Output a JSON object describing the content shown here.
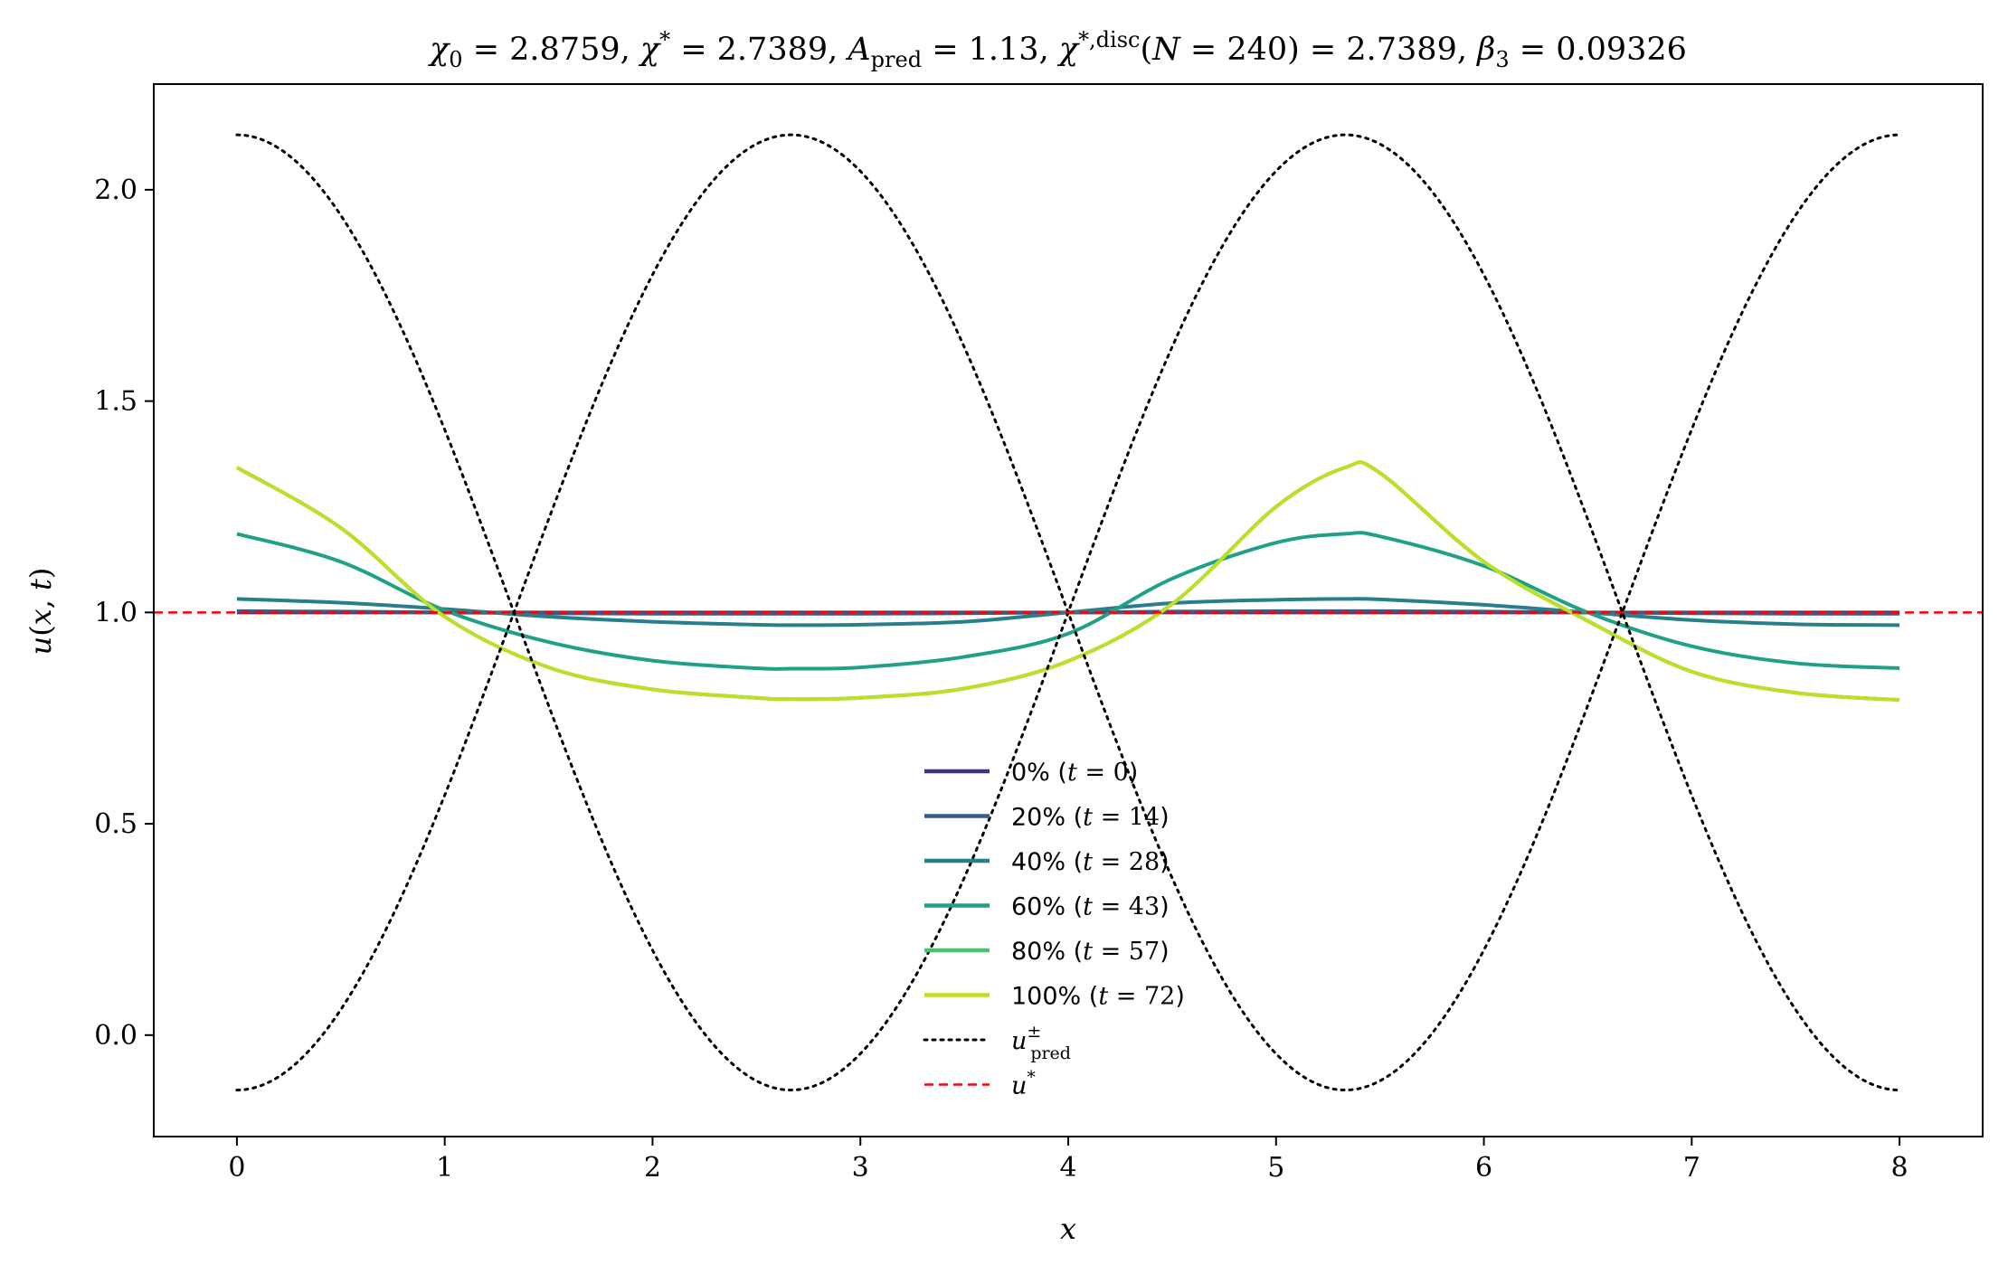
{
  "chart_data": {
    "type": "line",
    "title": "χ₀ = 2.8759,  χ* = 2.7389,  A_pred = 1.13,  χ*,disc(N = 240) = 2.7389,  β₃ = 0.09326",
    "xlabel": "x",
    "ylabel": "u(x, t)",
    "xlim": [
      -0.4,
      8.4
    ],
    "ylim": [
      -0.24,
      2.25
    ],
    "x_ticks": [
      "0",
      "1",
      "2",
      "3",
      "4",
      "5",
      "6",
      "7",
      "8"
    ],
    "y_ticks": [
      "0.0",
      "0.5",
      "1.0",
      "1.5",
      "2.0"
    ],
    "grid": false,
    "legend_position": "bottom-center",
    "x": [
      0,
      0.5,
      1.0,
      1.5,
      2.0,
      2.5,
      2.667,
      3.0,
      3.5,
      4.0,
      4.5,
      5.0,
      5.333,
      5.5,
      6.0,
      6.5,
      7.0,
      7.5,
      8.0
    ],
    "series": [
      {
        "name": "0% (t = 0)",
        "color": "#46327e",
        "style": "solid",
        "values": [
          1.0,
          1.0,
          1.0,
          1.0,
          1.0,
          1.0,
          1.0,
          1.0,
          1.0,
          1.0,
          1.0,
          1.0,
          1.0,
          1.0,
          1.0,
          1.0,
          1.0,
          1.0,
          1.0
        ]
      },
      {
        "name": "20% (t = 14)",
        "color": "#365c8d",
        "style": "solid",
        "values": [
          1.003,
          1.002,
          1.0,
          0.998,
          0.997,
          0.997,
          0.997,
          0.997,
          0.998,
          1.0,
          1.002,
          1.003,
          1.003,
          1.003,
          1.002,
          1.0,
          0.998,
          0.997,
          0.997
        ]
      },
      {
        "name": "40% (t = 28)",
        "color": "#277f8e",
        "style": "solid",
        "values": [
          1.032,
          1.023,
          1.008,
          0.99,
          0.978,
          0.971,
          0.97,
          0.971,
          0.978,
          1.0,
          1.022,
          1.03,
          1.032,
          1.031,
          1.018,
          1.0,
          0.982,
          0.972,
          0.97
        ]
      },
      {
        "name": "60% (t = 43)",
        "color": "#1fa187",
        "style": "solid",
        "values": [
          1.186,
          1.12,
          1.005,
          0.93,
          0.886,
          0.868,
          0.867,
          0.87,
          0.895,
          0.95,
          1.08,
          1.165,
          1.186,
          1.18,
          1.11,
          1.0,
          0.92,
          0.88,
          0.868
        ]
      },
      {
        "name": "80% (t = 57)",
        "color": "#4ac16d",
        "style": "solid",
        "values": [
          1.343,
          1.2,
          0.99,
          0.87,
          0.818,
          0.798,
          0.795,
          0.798,
          0.82,
          0.885,
          1.02,
          1.25,
          1.343,
          1.33,
          1.12,
          0.98,
          0.86,
          0.81,
          0.793
        ]
      },
      {
        "name": "100% (t = 72)",
        "color": "#bddf26",
        "style": "solid",
        "values": [
          1.343,
          1.2,
          0.99,
          0.87,
          0.818,
          0.798,
          0.795,
          0.798,
          0.82,
          0.885,
          1.02,
          1.25,
          1.343,
          1.33,
          1.12,
          0.98,
          0.86,
          0.81,
          0.793
        ]
      },
      {
        "name": "u±pred",
        "color": "#000000",
        "style": "dotted",
        "amplitude": 1.13,
        "center": 1.0,
        "period": 5.333,
        "values_upper": [
          2.13,
          1.82,
          1.2,
          0.55,
          -0.05,
          -0.11,
          -0.13,
          -0.09,
          0.25,
          0.87,
          1.55,
          2.05,
          2.13,
          2.05,
          1.55,
          0.87,
          0.25,
          -0.09,
          -0.13
        ]
      },
      {
        "name": "u*",
        "color": "#ff0000",
        "style": "dashed",
        "constant": 1.0
      }
    ]
  }
}
